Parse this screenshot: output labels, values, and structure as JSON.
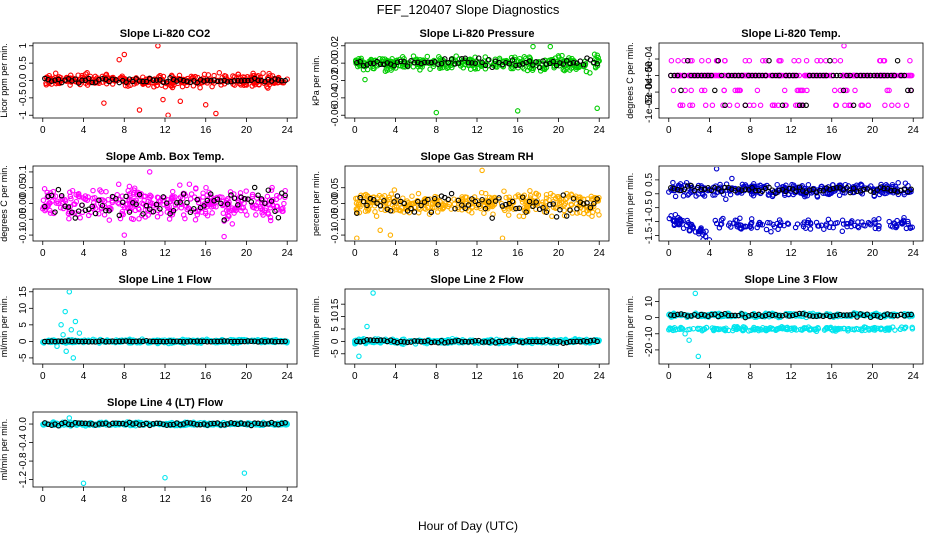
{
  "page_title": "FEF_120407  Slope Diagnostics",
  "x_axis_label": "Hour of Day (UTC)",
  "chart_data": [
    {
      "id": "p1",
      "type": "scatter",
      "title": "Slope Li-820 CO2",
      "ylabel": "Licor ppm per min.",
      "xlim": [
        0,
        24
      ],
      "ylim": [
        -1.0,
        1.0
      ],
      "yticks": [
        -1.0,
        -0.5,
        0.0,
        0.5,
        1.0
      ],
      "xticks": [
        0,
        4,
        8,
        12,
        16,
        20,
        24
      ],
      "color": "#ff0000",
      "noise": 0.14,
      "outliers": [
        [
          7.5,
          0.6
        ],
        [
          8.0,
          0.75
        ],
        [
          11.3,
          1.0
        ],
        [
          11.8,
          -0.55
        ],
        [
          12.3,
          -1.0
        ],
        [
          13.5,
          -0.6
        ],
        [
          16.0,
          -0.7
        ],
        [
          17.0,
          -0.95
        ],
        [
          6.0,
          -0.65
        ],
        [
          9.5,
          -0.85
        ]
      ],
      "highlight_noise": 0.06,
      "gap": null
    },
    {
      "id": "p2",
      "type": "scatter",
      "title": "Slope Li-820 Pressure",
      "ylabel": "kPa per min.",
      "xlim": [
        0,
        24
      ],
      "ylim": [
        -0.06,
        0.02
      ],
      "yticks": [
        -0.06,
        -0.04,
        -0.02,
        0.0,
        0.02
      ],
      "xticks": [
        0,
        4,
        8,
        12,
        16,
        20,
        24
      ],
      "color": "#00cc00",
      "noise": 0.007,
      "outliers": [
        [
          8.0,
          -0.057
        ],
        [
          16.0,
          -0.055
        ],
        [
          23.8,
          -0.052
        ],
        [
          1.0,
          -0.019
        ],
        [
          17.5,
          0.019
        ],
        [
          19.2,
          0.019
        ]
      ],
      "highlight_noise": 0.004,
      "gap": null
    },
    {
      "id": "p3",
      "type": "scatter",
      "title": "Slope Li-820 Temp.",
      "ylabel": "degrees C per min.",
      "xlim": [
        0,
        24
      ],
      "ylim": [
        -0.0012,
        0.0009
      ],
      "yticks": [
        -0.001,
        -0.0005,
        0.0,
        0.0005
      ],
      "ytick_labels": [
        "-1e-03",
        "-5e-04",
        "0e+00",
        "5e-04"
      ],
      "xticks": [
        0,
        4,
        8,
        12,
        16,
        20,
        24
      ],
      "color": "#ff00ff",
      "noise": 0,
      "levels": [
        0.0,
        0.00045,
        -0.00045,
        -0.0009
      ],
      "outliers": [
        [
          17.2,
          0.0009
        ]
      ],
      "highlight_noise": 0,
      "gap": null
    },
    {
      "id": "p4",
      "type": "scatter",
      "title": "Slope Amb. Box Temp.",
      "ylabel": "degrees C per min.",
      "xlim": [
        0,
        24
      ],
      "ylim": [
        -0.11,
        0.11
      ],
      "yticks": [
        -0.1,
        -0.05,
        0.0,
        0.05,
        0.1
      ],
      "xticks": [
        0,
        4,
        8,
        12,
        16,
        20,
        24
      ],
      "color": "#ff00ff",
      "noise": 0.045,
      "outliers": [
        [
          8.0,
          -0.1
        ],
        [
          10.5,
          0.1
        ],
        [
          17.8,
          -0.105
        ]
      ],
      "highlight_noise": 0.04,
      "gap": null
    },
    {
      "id": "p5",
      "type": "scatter",
      "title": "Slope Gas Stream RH",
      "ylabel": "percent per min.",
      "xlim": [
        0,
        24
      ],
      "ylim": [
        -0.11,
        0.11
      ],
      "yticks": [
        -0.1,
        -0.05,
        0.0,
        0.05
      ],
      "xticks": [
        0,
        4,
        8,
        12,
        16,
        20,
        24
      ],
      "color": "#ffb000",
      "noise": 0.03,
      "outliers": [
        [
          0.2,
          -0.11
        ],
        [
          12.5,
          0.105
        ],
        [
          14.5,
          -0.11
        ],
        [
          3.5,
          -0.1
        ],
        [
          2.5,
          -0.085
        ]
      ],
      "highlight_noise": 0.03,
      "gap": null
    },
    {
      "id": "p6",
      "type": "scatter",
      "title": "Slope Sample Flow",
      "ylabel": "ml/min per min.",
      "xlim": [
        0,
        24
      ],
      "ylim": [
        -1.6,
        0.9
      ],
      "yticks": [
        -1.5,
        -1.0,
        -0.5,
        0.0,
        0.5
      ],
      "xticks": [
        0,
        4,
        8,
        12,
        16,
        20,
        24
      ],
      "color": "#0000cc",
      "noise": 0.18,
      "bands": [
        {
          "from": 0,
          "to": 24,
          "y0": 0.15,
          "y1": 0.15,
          "n": 300
        },
        {
          "from": 0,
          "to": 4,
          "y0": -0.9,
          "y1": -1.5,
          "n": 50
        },
        {
          "from": 4.5,
          "to": 24,
          "y0": -1.15,
          "y1": -1.05,
          "n": 130
        }
      ],
      "outliers": [
        [
          4.7,
          0.9
        ],
        [
          5.6,
          -0.2
        ],
        [
          6.2,
          0.55
        ]
      ],
      "highlight_noise": 0.1,
      "gap": null
    },
    {
      "id": "p7",
      "type": "scatter",
      "title": "Slope Line 1 Flow",
      "ylabel": "ml/min per min.",
      "xlim": [
        0,
        24
      ],
      "ylim": [
        -6,
        15
      ],
      "yticks": [
        -5,
        0,
        5,
        10,
        15
      ],
      "xticks": [
        0,
        4,
        8,
        12,
        16,
        20,
        24
      ],
      "color": "#00e5ee",
      "noise": 0.45,
      "outliers": [
        [
          2.6,
          15
        ],
        [
          2.2,
          9
        ],
        [
          3.2,
          6
        ],
        [
          1.8,
          5
        ],
        [
          2.8,
          3.5
        ],
        [
          2.3,
          -3
        ],
        [
          3.0,
          -5
        ],
        [
          1.4,
          -1.5
        ],
        [
          2.0,
          2
        ],
        [
          3.6,
          2.5
        ]
      ],
      "highlight_noise": 0.15,
      "gap": null
    },
    {
      "id": "p8",
      "type": "scatter",
      "title": "Slope Line 2 Flow",
      "ylabel": "ml/min per min.",
      "xlim": [
        0,
        24
      ],
      "ylim": [
        -8,
        20
      ],
      "yticks": [
        -5,
        0,
        5,
        10,
        15
      ],
      "xticks": [
        0,
        4,
        8,
        12,
        16,
        20,
        24
      ],
      "color": "#00e5ee",
      "noise": 0.7,
      "outliers": [
        [
          1.8,
          19.5
        ],
        [
          1.2,
          6
        ],
        [
          0.4,
          -6
        ],
        [
          2.0,
          1
        ]
      ],
      "highlight_noise": 0.5,
      "gap": null
    },
    {
      "id": "p9",
      "type": "scatter",
      "title": "Slope Line 3 Flow",
      "ylabel": "ml/min per min.",
      "xlim": [
        0,
        24
      ],
      "ylim": [
        -27,
        16
      ],
      "yticks": [
        -20,
        -10,
        0,
        10
      ],
      "xticks": [
        0,
        4,
        8,
        12,
        16,
        20,
        24
      ],
      "color": "#00e5ee",
      "noise": 1.0,
      "bands": [
        {
          "from": 0,
          "to": 24,
          "y0": 1.5,
          "y1": 1.5,
          "n": 260
        },
        {
          "from": 0,
          "to": 24,
          "y0": -7,
          "y1": -7,
          "n": 200
        }
      ],
      "outliers": [
        [
          2.6,
          15
        ],
        [
          2.9,
          -24
        ],
        [
          2.0,
          -14
        ],
        [
          1.6,
          -10
        ]
      ],
      "highlight_noise": 1.0,
      "gap": null
    },
    {
      "id": "p10",
      "type": "scatter",
      "title": "Slope Line 4 (LT) Flow",
      "ylabel": "ml/min per min.",
      "xlim": [
        0,
        24
      ],
      "ylim": [
        -1.3,
        0.2
      ],
      "yticks": [
        -1.2,
        -0.8,
        -0.4,
        0.0
      ],
      "xticks": [
        0,
        4,
        8,
        12,
        16,
        20,
        24
      ],
      "color": "#00e5ee",
      "noise": 0.03,
      "outliers": [
        [
          4.0,
          -1.28
        ],
        [
          12.0,
          -1.16
        ],
        [
          19.8,
          -1.06
        ],
        [
          2.6,
          0.13
        ]
      ],
      "highlight_noise": 0.03,
      "gap": null
    }
  ]
}
